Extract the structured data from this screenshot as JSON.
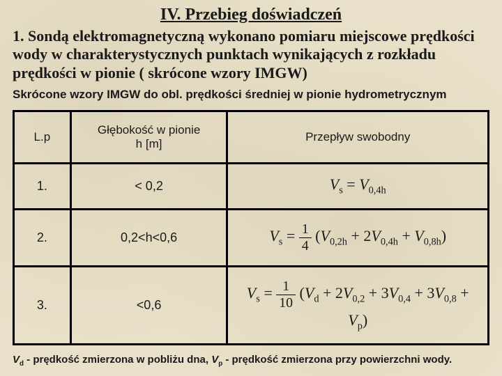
{
  "title": "IV. Przebieg doświadczeń",
  "subtitle": "1. Sondą elektromagnetyczną wykonano pomiaru miejscowe prędkości wody w charakterystycznych punktach wynikających z rozkładu prędkości w pionie ( skrócone wzory IMGW)",
  "desc": "Skrócone wzory IMGW do obl. prędkości średniej w pionie hydrometrycznym",
  "table": {
    "headers": {
      "lp": "L.p",
      "depth_line1": "Głębokość w pionie",
      "depth_line2": "h [m]",
      "flow": "Przepływ swobodny"
    },
    "rows": [
      {
        "lp": "1.",
        "depth": "< 0,2"
      },
      {
        "lp": "2.",
        "depth": "0,2<h<0,6"
      },
      {
        "lp": "3.",
        "depth": "<0,6"
      }
    ]
  },
  "footnote_parts": {
    "vd": "V",
    "vd_sub": "d",
    "vd_desc": " - prędkość zmierzona w pobliżu dna,  ",
    "vp": "V",
    "vp_sub": "p",
    "vp_desc": " - prędkość zmierzona przy powierzchni wody."
  },
  "colors": {
    "background": "#e8e0c8",
    "text": "#1a1a1a",
    "border": "#000000"
  }
}
